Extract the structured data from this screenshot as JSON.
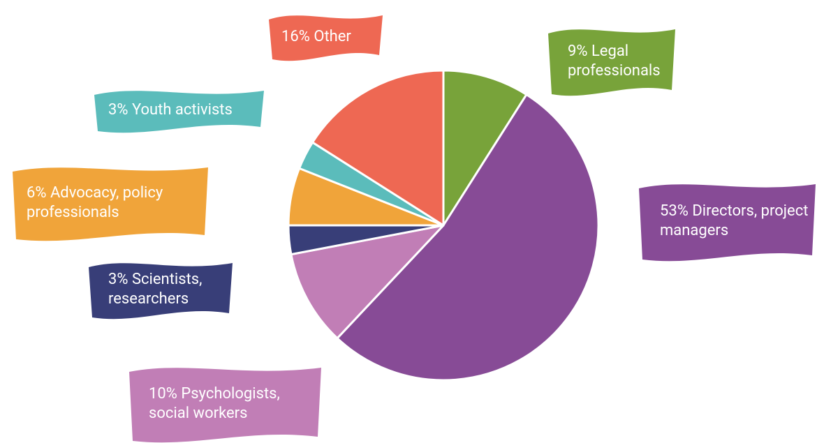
{
  "chart_data": {
    "type": "pie",
    "categories": [
      "Legal professionals",
      "Directors, project managers",
      "Psychologists, social workers",
      "Scientists, researchers",
      "Advocacy, policy professionals",
      "Youth activists",
      "Other"
    ],
    "values": [
      9,
      53,
      10,
      3,
      6,
      3,
      16
    ],
    "value_labels": [
      "9%",
      "53%",
      "10%",
      "3%",
      "6%",
      "3%",
      "16%"
    ],
    "colors": [
      "#78a33a",
      "#874b96",
      "#c17eb6",
      "#383e78",
      "#f0a43a",
      "#5bbcbb",
      "#ee6853"
    ]
  }
}
